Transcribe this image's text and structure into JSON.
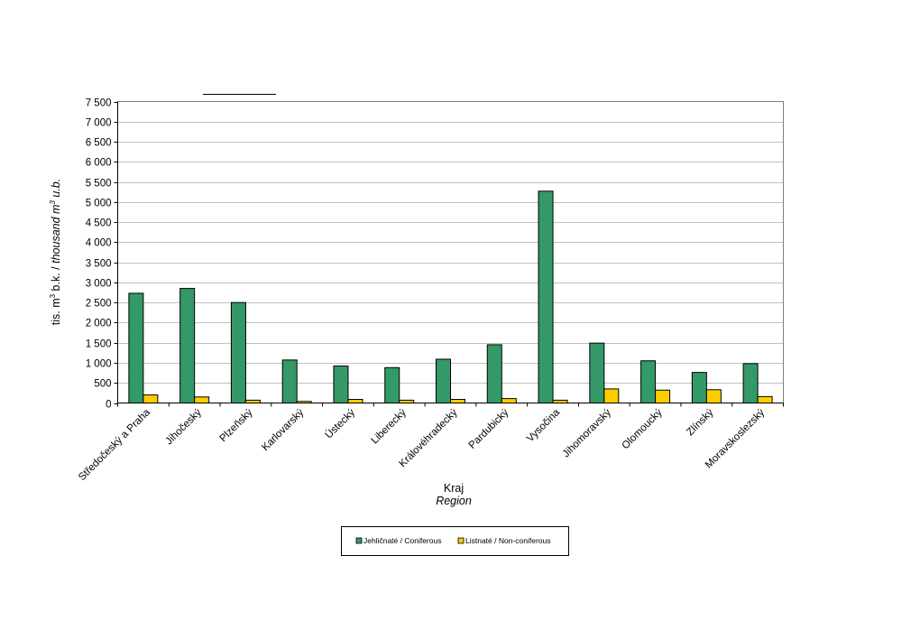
{
  "chart_data": {
    "type": "bar",
    "title": "",
    "categories": [
      "Středočeský a Praha",
      "Jihočeský",
      "Plzeňský",
      "Karlovarský",
      "Ústecký",
      "Liberecký",
      "Královéhradecký",
      "Pardubický",
      "Vysočina",
      "Jihomoravský",
      "Olomoucký",
      "Zlínský",
      "Moravskoslezský"
    ],
    "series": [
      {
        "name": "Jehličnaté / Coniferous",
        "color": "#339966",
        "values": [
          2730,
          2850,
          2500,
          1070,
          920,
          880,
          1090,
          1450,
          5270,
          1490,
          1050,
          760,
          980
        ]
      },
      {
        "name": "Listnaté / Non-coniferous",
        "color": "#ffcc00",
        "values": [
          200,
          150,
          70,
          40,
          90,
          70,
          90,
          110,
          70,
          350,
          320,
          330,
          160
        ]
      }
    ],
    "xlabel": "Kraj",
    "xlabel_en": "Region",
    "ylabel_prefix": "tis. m",
    "ylabel_mid": " b.k. / ",
    "ylabel_en": "thousand m",
    "ylabel_en_suffix": " u.b.",
    "ylabel_sup": "3",
    "ylim": [
      0,
      7500
    ],
    "ytick_step": 500,
    "ytick_labels": [
      "0",
      "500",
      "1 000",
      "1 500",
      "2 000",
      "2 500",
      "3 000",
      "3 500",
      "4 000",
      "4 500",
      "5 000",
      "5 500",
      "6 000",
      "6 500",
      "7 000",
      "7 500"
    ],
    "grid": true,
    "legend_position": "bottom"
  }
}
